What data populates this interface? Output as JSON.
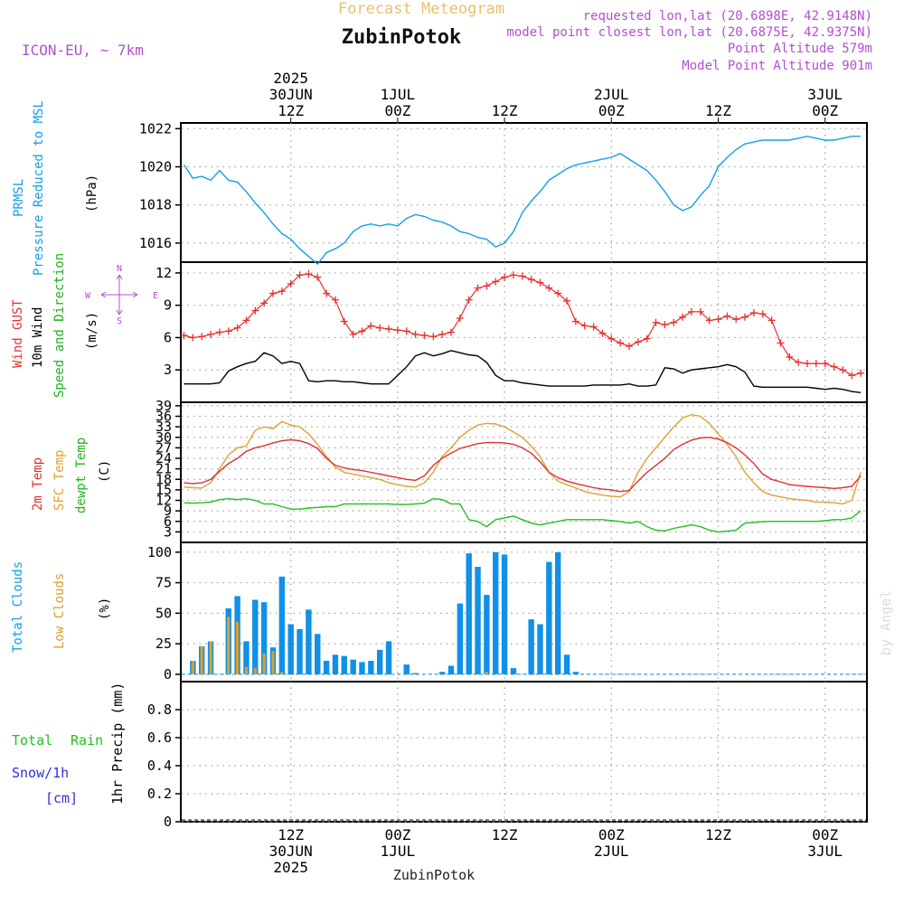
{
  "header": {
    "title": "Forecast Meteogram",
    "location": "ZubinPotok",
    "model": "ICON-EU, ~ 7km",
    "requested": "requested lon,lat (20.6898E, 42.9148N)",
    "closest": "model point closest lon,lat (20.6875E, 42.9375N)",
    "point_altitude": "Point Altitude 579m",
    "model_altitude": "Model Point Altitude 901m",
    "footer_location": "ZubinPotok",
    "credit": "by Angel"
  },
  "time_axis": {
    "top_labels": [
      {
        "h": 12,
        "lines": [
          "2025",
          "30JUN",
          "12Z"
        ]
      },
      {
        "h": 24,
        "lines": [
          "1JUL",
          "00Z"
        ]
      },
      {
        "h": 36,
        "lines": [
          "12Z"
        ]
      },
      {
        "h": 48,
        "lines": [
          "2JUL",
          "00Z"
        ]
      },
      {
        "h": 60,
        "lines": [
          "12Z"
        ]
      },
      {
        "h": 72,
        "lines": [
          "3JUL",
          "00Z"
        ]
      }
    ],
    "bottom_labels": [
      {
        "h": 12,
        "lines": [
          "12Z",
          "30JUN",
          "2025"
        ]
      },
      {
        "h": 24,
        "lines": [
          "00Z",
          "1JUL"
        ]
      },
      {
        "h": 36,
        "lines": [
          "12Z"
        ]
      },
      {
        "h": 48,
        "lines": [
          "00Z",
          "2JUL"
        ]
      },
      {
        "h": 60,
        "lines": [
          "12Z"
        ]
      },
      {
        "h": 72,
        "lines": [
          "00Z",
          "3JUL"
        ]
      }
    ]
  },
  "panels": {
    "pressure": {
      "label1": "PRMSL",
      "label2": "Pressure Reduced to MSL",
      "unit": "(hPa)",
      "ticks": [
        "1016",
        "1018",
        "1020",
        "1022"
      ]
    },
    "wind": {
      "label1": "Wind GUST",
      "label2": "10m Wind",
      "label3": "Speed and Direction",
      "unit": "(m/s)",
      "ticks": [
        "3",
        "6",
        "9",
        "12"
      ],
      "compass": {
        "n": "N",
        "s": "S",
        "w": "W",
        "e": "E"
      }
    },
    "temp": {
      "label1": "2m Temp",
      "label2": "SFC Temp",
      "label3": "dewpt Temp",
      "unit": "(C)",
      "ticks": [
        "3",
        "6",
        "9",
        "12",
        "15",
        "18",
        "21",
        "24",
        "27",
        "30",
        "33",
        "36",
        "39"
      ]
    },
    "clouds": {
      "label1": "Total Clouds",
      "label2": "Low Clouds",
      "unit": "(%)",
      "ticks": [
        "0",
        "25",
        "50",
        "75",
        "100"
      ]
    },
    "precip": {
      "label1": "Total",
      "label2": "Rain",
      "label3": "Snow/1h",
      "label4": "[cm]",
      "unit": "1hr Precip (mm)",
      "ticks": [
        "0",
        "0.2",
        "0.4",
        "0.6",
        "0.8"
      ]
    }
  },
  "colors": {
    "pressure": "#10a0e8",
    "gust": "#e83030",
    "wind": "#000000",
    "temp2m": "#e03030",
    "sfc": "#e0a030",
    "dewpt": "#20c020",
    "total_clouds": "#1090e8",
    "low_clouds": "#d8a030",
    "rain": "#20c020",
    "snow": "#3030e0",
    "title": "#e8c070",
    "purple": "#b050d0",
    "grid": "#a0a0a0"
  },
  "chart_data": [
    {
      "type": "line",
      "name": "pressure",
      "x_hours": [
        0,
        1,
        2,
        3,
        4,
        5,
        6,
        7,
        8,
        9,
        10,
        11,
        12,
        13,
        14,
        15,
        16,
        17,
        18,
        19,
        20,
        21,
        22,
        23,
        24,
        25,
        26,
        27,
        28,
        29,
        30,
        31,
        32,
        33,
        34,
        35,
        36,
        37,
        38,
        39,
        40,
        41,
        42,
        43,
        44,
        45,
        46,
        47,
        48,
        49,
        50,
        51,
        52,
        53,
        54,
        55,
        56,
        57,
        58,
        59,
        60,
        61,
        62,
        63,
        64,
        65,
        66,
        67,
        68,
        69,
        70,
        71,
        72,
        73,
        74,
        75,
        76
      ],
      "series": [
        {
          "values": [
            1020.1,
            1019.4,
            1019.5,
            1019.3,
            1019.8,
            1019.3,
            1019.2,
            1018.7,
            1018.1,
            1017.6,
            1017.0,
            1016.5,
            1016.2,
            1015.7,
            1015.3,
            1014.9,
            1015.5,
            1015.7,
            1016.0,
            1016.6,
            1016.9,
            1017.0,
            1016.9,
            1017.0,
            1016.9,
            1017.3,
            1017.5,
            1017.4,
            1017.2,
            1017.1,
            1016.9,
            1016.6,
            1016.5,
            1016.3,
            1016.2,
            1015.8,
            1016.0,
            1016.6,
            1017.6,
            1018.2,
            1018.7,
            1019.3,
            1019.6,
            1019.9,
            1020.1,
            1020.2,
            1020.3,
            1020.4,
            1020.5,
            1020.7,
            1020.4,
            1020.1,
            1019.8,
            1019.3,
            1018.7,
            1018.0,
            1017.7,
            1017.9,
            1018.5,
            1019.0,
            1020.0,
            1020.5,
            1020.9,
            1021.2,
            1021.3,
            1021.4,
            1021.4,
            1021.4,
            1021.4,
            1021.5,
            1021.6,
            1021.5,
            1021.4,
            1021.4,
            1021.5,
            1021.6,
            1021.6
          ]
        }
      ],
      "ylim": [
        1015,
        1022.3
      ]
    },
    {
      "type": "line",
      "name": "wind",
      "x_hours": [
        0,
        1,
        2,
        3,
        4,
        5,
        6,
        7,
        8,
        9,
        10,
        11,
        12,
        13,
        14,
        15,
        16,
        17,
        18,
        19,
        20,
        21,
        22,
        23,
        24,
        25,
        26,
        27,
        28,
        29,
        30,
        31,
        32,
        33,
        34,
        35,
        36,
        37,
        38,
        39,
        40,
        41,
        42,
        43,
        44,
        45,
        46,
        47,
        48,
        49,
        50,
        51,
        52,
        53,
        54,
        55,
        56,
        57,
        58,
        59,
        60,
        61,
        62,
        63,
        64,
        65,
        66,
        67,
        68,
        69,
        70,
        71,
        72,
        73,
        74,
        75,
        76
      ],
      "series": [
        {
          "values": [
            6.2,
            6.0,
            6.1,
            6.3,
            6.5,
            6.6,
            6.9,
            7.6,
            8.5,
            9.2,
            10.1,
            10.3,
            11.0,
            11.8,
            11.9,
            11.6,
            10.1,
            9.5,
            7.5,
            6.3,
            6.6,
            7.1,
            6.9,
            6.8,
            6.7,
            6.6,
            6.3,
            6.2,
            6.1,
            6.3,
            6.5,
            7.8,
            9.5,
            10.6,
            10.8,
            11.2,
            11.6,
            11.8,
            11.7,
            11.4,
            11.1,
            10.6,
            10.1,
            9.4,
            7.5,
            7.1,
            7.0,
            6.4,
            5.9,
            5.5,
            5.2,
            5.6,
            5.9,
            7.4,
            7.2,
            7.4,
            7.9,
            8.4,
            8.4,
            7.6,
            7.7,
            8.0,
            7.7,
            7.9,
            8.3,
            8.2,
            7.6,
            5.5,
            4.2,
            3.7,
            3.6,
            3.6,
            3.6,
            3.3,
            3.0,
            2.5,
            2.7
          ]
        },
        {
          "values": [
            1.7,
            1.7,
            1.7,
            1.7,
            1.8,
            2.9,
            3.3,
            3.6,
            3.8,
            4.6,
            4.3,
            3.6,
            3.8,
            3.6,
            2.0,
            1.9,
            2.0,
            2.0,
            1.9,
            1.9,
            1.8,
            1.7,
            1.7,
            1.7,
            2.5,
            3.3,
            4.3,
            4.6,
            4.3,
            4.5,
            4.8,
            4.6,
            4.4,
            4.3,
            3.7,
            2.5,
            2.0,
            2.0,
            1.8,
            1.7,
            1.6,
            1.5,
            1.5,
            1.5,
            1.5,
            1.5,
            1.6,
            1.6,
            1.6,
            1.6,
            1.7,
            1.5,
            1.5,
            1.6,
            3.2,
            3.1,
            2.7,
            3.0,
            3.1,
            3.2,
            3.3,
            3.5,
            3.3,
            2.8,
            1.5,
            1.4,
            1.4,
            1.4,
            1.4,
            1.4,
            1.4,
            1.3,
            1.2,
            1.3,
            1.2,
            1.0,
            0.9
          ]
        }
      ],
      "ylim": [
        0,
        13
      ]
    },
    {
      "type": "line",
      "name": "temperature",
      "x_hours": [
        0,
        1,
        2,
        3,
        4,
        5,
        6,
        7,
        8,
        9,
        10,
        11,
        12,
        13,
        14,
        15,
        16,
        17,
        18,
        19,
        20,
        21,
        22,
        23,
        24,
        25,
        26,
        27,
        28,
        29,
        30,
        31,
        32,
        33,
        34,
        35,
        36,
        37,
        38,
        39,
        40,
        41,
        42,
        43,
        44,
        45,
        46,
        47,
        48,
        49,
        50,
        51,
        52,
        53,
        54,
        55,
        56,
        57,
        58,
        59,
        60,
        61,
        62,
        63,
        64,
        65,
        66,
        67,
        68,
        69,
        70,
        71,
        72,
        73,
        74,
        75,
        76
      ],
      "series": [
        {
          "values": [
            17.0,
            16.8,
            17.0,
            18.0,
            20.3,
            22.5,
            24.0,
            26.0,
            27.0,
            27.6,
            28.4,
            29.0,
            29.3,
            29.0,
            28.2,
            26.8,
            24.0,
            22.0,
            21.3,
            20.8,
            20.5,
            20.0,
            19.5,
            19.0,
            18.5,
            18.0,
            17.7,
            19.0,
            22.0,
            24.0,
            25.5,
            26.8,
            27.5,
            28.2,
            28.5,
            28.5,
            28.4,
            28.0,
            27.0,
            25.5,
            23.0,
            20.0,
            18.5,
            17.5,
            16.8,
            16.2,
            15.6,
            15.2,
            15.0,
            14.5,
            14.8,
            17.5,
            20.0,
            22.0,
            24.0,
            26.5,
            28.0,
            29.2,
            29.8,
            30.0,
            29.5,
            28.5,
            27.0,
            25.0,
            22.5,
            19.5,
            18.0,
            17.3,
            16.5,
            16.2,
            16.0,
            15.8,
            15.6,
            15.4,
            15.6,
            16.0,
            19.0
          ]
        },
        {
          "values": [
            15.8,
            15.6,
            15.5,
            17.0,
            21.0,
            25.0,
            27.0,
            27.5,
            32.0,
            33.0,
            32.5,
            34.5,
            33.5,
            33.0,
            31.0,
            28.0,
            24.5,
            21.5,
            20.0,
            19.5,
            19.0,
            18.5,
            18.0,
            17.0,
            16.5,
            16.0,
            15.8,
            17.0,
            20.0,
            24.5,
            27.0,
            30.0,
            32.0,
            33.5,
            34.0,
            33.8,
            33.0,
            31.5,
            30.0,
            27.5,
            24.5,
            20.0,
            17.5,
            16.5,
            15.5,
            14.5,
            14.0,
            13.5,
            13.2,
            13.0,
            14.5,
            20.0,
            24.0,
            27.0,
            30.0,
            33.0,
            35.5,
            36.5,
            36.0,
            34.0,
            31.0,
            28.0,
            24.5,
            20.0,
            17.0,
            14.5,
            13.5,
            13.0,
            12.5,
            12.2,
            12.0,
            11.5,
            11.5,
            11.3,
            11.0,
            12.0,
            20.0
          ]
        },
        {
          "values": [
            11.3,
            11.2,
            11.3,
            11.5,
            12.2,
            12.5,
            12.2,
            12.5,
            12.0,
            11.0,
            11.0,
            10.2,
            9.5,
            9.5,
            9.8,
            10.0,
            10.2,
            10.2,
            11.0,
            11.0,
            11.0,
            11.0,
            11.0,
            11.0,
            10.8,
            10.8,
            11.0,
            11.2,
            12.5,
            12.2,
            11.0,
            11.0,
            6.5,
            6.0,
            4.5,
            6.5,
            7.0,
            7.5,
            6.5,
            5.5,
            5.0,
            5.5,
            6.0,
            6.5,
            6.5,
            6.5,
            6.5,
            6.5,
            6.2,
            6.0,
            5.5,
            6.0,
            4.5,
            3.5,
            3.3,
            4.0,
            4.5,
            5.0,
            4.5,
            3.5,
            3.0,
            3.2,
            3.5,
            5.5,
            5.7,
            5.9,
            6.0,
            6.0,
            6.0,
            6.0,
            6.0,
            6.0,
            6.2,
            6.5,
            6.5,
            7.0,
            9.0
          ]
        }
      ],
      "ylim": [
        0,
        40
      ]
    },
    {
      "type": "bar",
      "name": "clouds",
      "x_hours": [
        0,
        1,
        2,
        3,
        4,
        5,
        6,
        7,
        8,
        9,
        10,
        11,
        12,
        13,
        14,
        15,
        16,
        17,
        18,
        19,
        20,
        21,
        22,
        23,
        24,
        25,
        26,
        27,
        28,
        29,
        30,
        31,
        32,
        33,
        34,
        35,
        36,
        37,
        38,
        39,
        40,
        41,
        42,
        43,
        44,
        45,
        46,
        47,
        48,
        49,
        50,
        51,
        52,
        53,
        54,
        55,
        56,
        57,
        58,
        59,
        60,
        61,
        62,
        63,
        64,
        65,
        66,
        67,
        68,
        69,
        70,
        71,
        72,
        73,
        74,
        75,
        76
      ],
      "series": [
        {
          "values": [
            0,
            11,
            23,
            27,
            0,
            54,
            64,
            27,
            61,
            59,
            22,
            80,
            41,
            37,
            53,
            33,
            11,
            16,
            15,
            12,
            10,
            11,
            20,
            27,
            0,
            8,
            1,
            0,
            0,
            2,
            7,
            58,
            99,
            88,
            65,
            100,
            98,
            5,
            0,
            45,
            41,
            92,
            100,
            16,
            2,
            0,
            0,
            0,
            0,
            0,
            0,
            0,
            0,
            0,
            0,
            0,
            0,
            0,
            0,
            0,
            0,
            0,
            0,
            0,
            0,
            0,
            0,
            0,
            0,
            0,
            0,
            0,
            0,
            0,
            0,
            0,
            0
          ]
        },
        {
          "values": [
            0,
            11,
            23,
            27,
            0,
            47,
            43,
            6,
            5,
            17,
            19,
            2,
            0,
            0,
            0,
            0,
            0,
            0,
            0,
            0,
            0,
            0,
            0,
            0,
            0,
            0,
            0,
            0,
            0,
            0,
            0,
            0,
            0,
            0,
            2,
            0,
            0,
            0,
            0,
            0,
            0,
            0,
            0,
            0,
            0,
            0,
            0,
            0,
            0,
            0,
            0,
            0,
            0,
            0,
            0,
            0,
            0,
            0,
            0,
            0,
            0,
            0,
            0,
            0,
            0,
            0,
            0,
            0,
            0,
            0,
            0,
            0,
            0,
            0,
            0,
            0,
            0
          ]
        }
      ],
      "ylim": [
        -6,
        108
      ]
    },
    {
      "type": "bar",
      "name": "precipitation",
      "series": [
        {
          "values": []
        }
      ],
      "ylim": [
        0,
        1
      ]
    }
  ]
}
